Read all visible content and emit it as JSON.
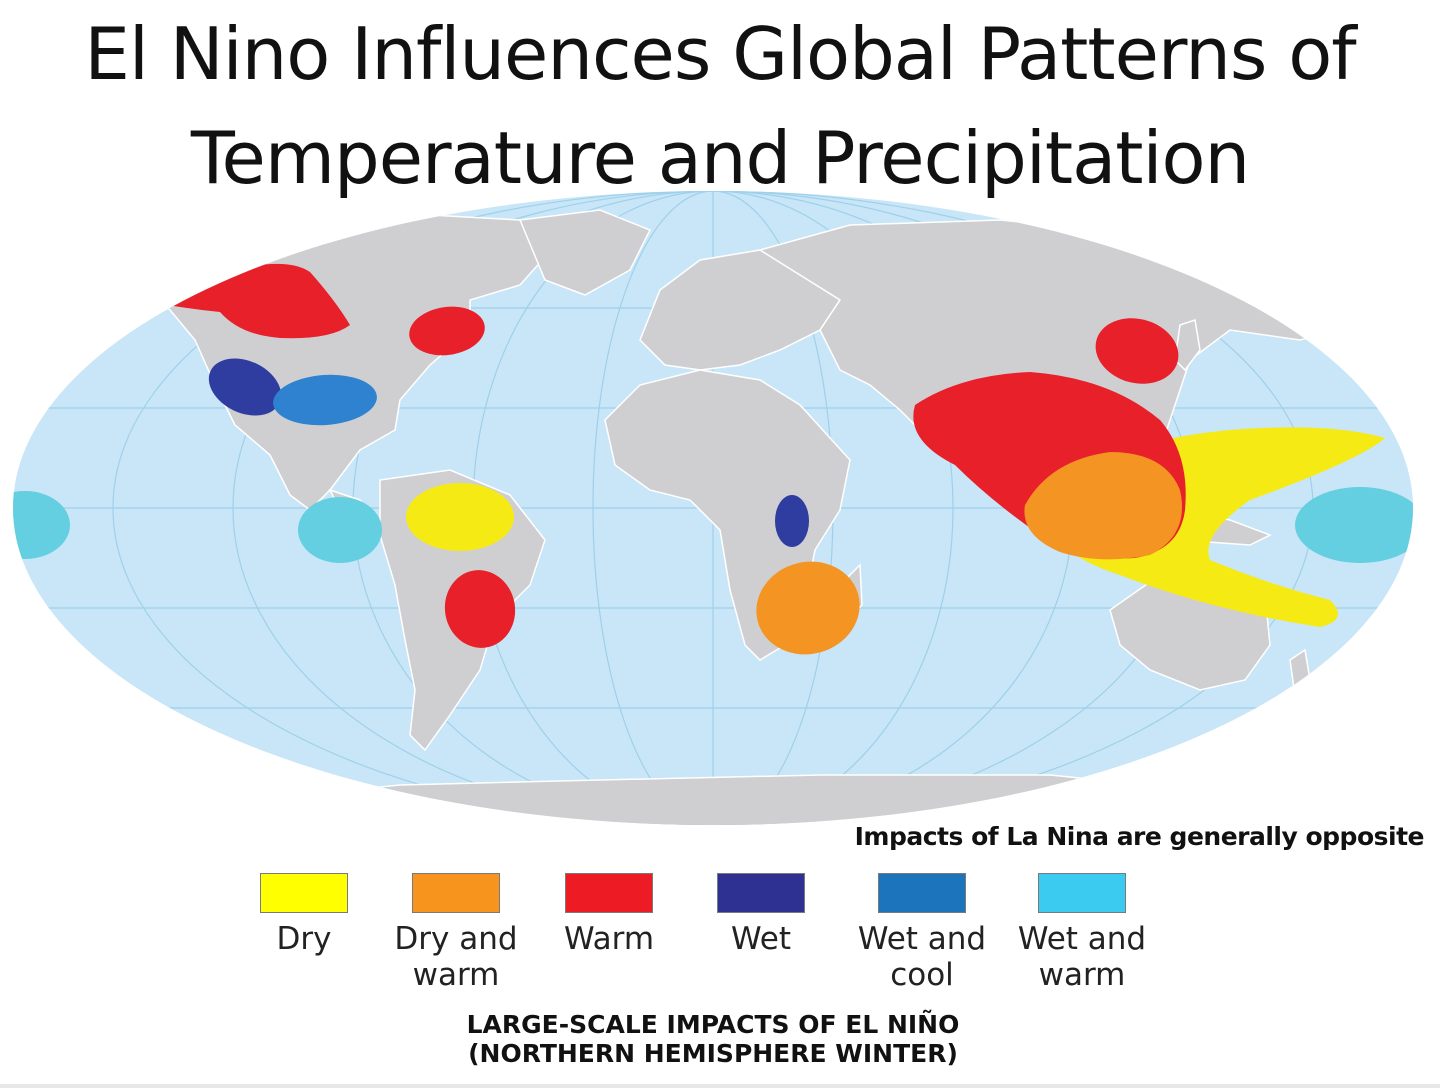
{
  "title": {
    "line1": "El Nino Influences Global Patterns of",
    "line2": "Temperature and Precipitation"
  },
  "note": "Impacts of La Nina are generally opposite",
  "colors": {
    "ocean": "#c8e6f7",
    "land": "#cfcfd1",
    "dry": "#f5ea14",
    "dry_and_warm": "#f39423",
    "warm": "#e8202a",
    "wet": "#2e3d9f",
    "wet_and_cool": "#2f82cf",
    "wet_and_warm": "#63cfe0"
  },
  "legend": [
    {
      "key": "dry",
      "label": "Dry",
      "color": "#ffff00"
    },
    {
      "key": "dry_and_warm",
      "label": "Dry and\nwarm",
      "color": "#f7941d"
    },
    {
      "key": "warm",
      "label": "Warm",
      "color": "#ed1c24"
    },
    {
      "key": "wet",
      "label": "Wet",
      "color": "#2e3192"
    },
    {
      "key": "wet_and_cool",
      "label": "Wet and\ncool",
      "color": "#1c75bc"
    },
    {
      "key": "wet_and_warm",
      "label": "Wet and\nwarm",
      "color": "#3ccbf0"
    }
  ],
  "caption": {
    "line1": "LARGE-SCALE IMPACTS OF EL NIÑO",
    "line2": "(NORTHERN HEMISPHERE WINTER)"
  },
  "regions": [
    {
      "name": "alaska-canada",
      "category": "warm"
    },
    {
      "name": "northeast-north-america",
      "category": "warm"
    },
    {
      "name": "western-us",
      "category": "wet"
    },
    {
      "name": "southern-us",
      "category": "wet_and_cool"
    },
    {
      "name": "pacific-coast-central-america",
      "category": "wet_and_warm"
    },
    {
      "name": "northern-south-america",
      "category": "dry"
    },
    {
      "name": "southeastern-south-america",
      "category": "warm"
    },
    {
      "name": "east-africa",
      "category": "wet"
    },
    {
      "name": "southeast-africa",
      "category": "dry_and_warm"
    },
    {
      "name": "japan-korea",
      "category": "warm"
    },
    {
      "name": "south-southeast-asia",
      "category": "warm"
    },
    {
      "name": "western-pacific",
      "category": "dry"
    },
    {
      "name": "indonesia",
      "category": "dry_and_warm"
    },
    {
      "name": "central-pacific-east",
      "category": "wet_and_warm"
    },
    {
      "name": "central-pacific-west",
      "category": "wet_and_warm"
    }
  ]
}
